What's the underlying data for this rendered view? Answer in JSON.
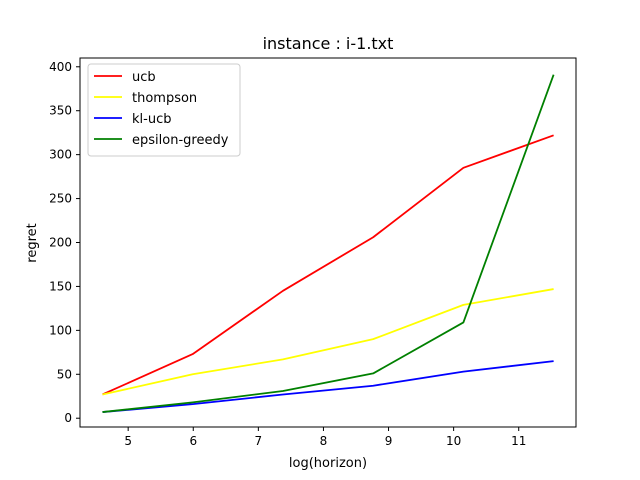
{
  "chart_data": {
    "type": "line",
    "title": "instance : i-1.txt",
    "xlabel": "log(horizon)",
    "ylabel": "regret",
    "x": [
      4.605,
      5.991,
      7.378,
      8.764,
      10.15,
      11.536
    ],
    "xlim": [
      4.26,
      11.88
    ],
    "ylim": [
      -10,
      410
    ],
    "xticks": [
      5,
      6,
      7,
      8,
      9,
      10,
      11
    ],
    "yticks": [
      0,
      50,
      100,
      150,
      200,
      250,
      300,
      350,
      400
    ],
    "grid": false,
    "legend_position": "top-left",
    "series": [
      {
        "name": "ucb",
        "color": "#ff0000",
        "values": [
          27,
          73,
          145,
          206,
          285,
          322
        ]
      },
      {
        "name": "thompson",
        "color": "#ffff00",
        "values": [
          27,
          50,
          67,
          90,
          129,
          147
        ]
      },
      {
        "name": "kl-ucb",
        "color": "#0000ff",
        "values": [
          7,
          16,
          27,
          37,
          53,
          65
        ]
      },
      {
        "name": "epsilon-greedy",
        "color": "#008000",
        "values": [
          7,
          18,
          31,
          51,
          109,
          391
        ]
      }
    ]
  }
}
